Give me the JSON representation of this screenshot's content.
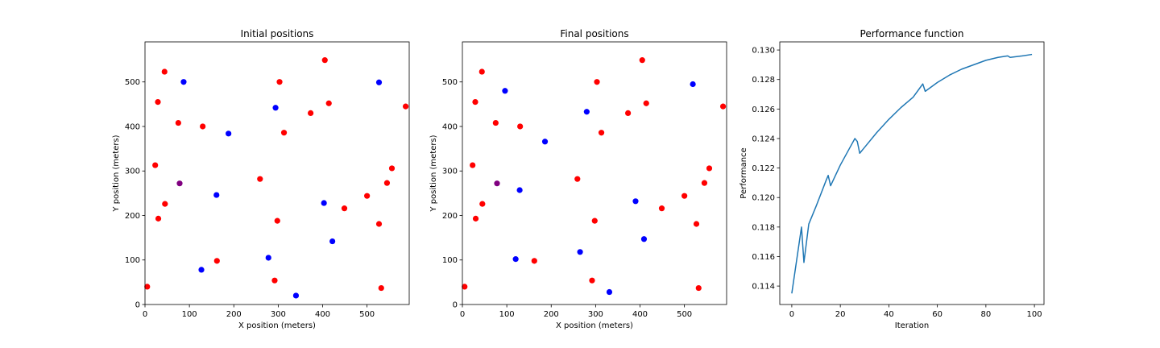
{
  "chart_data": [
    {
      "type": "scatter",
      "title": "Initial positions",
      "xlabel": "X position (meters)",
      "ylabel": "Y position (meters)",
      "xlim": [
        0,
        595
      ],
      "ylim": [
        0,
        590
      ],
      "xticks": [
        "0",
        "100",
        "200",
        "300",
        "400",
        "500"
      ],
      "xtick_values": [
        0,
        100,
        200,
        300,
        400,
        500
      ],
      "yticks": [
        "0",
        "100",
        "200",
        "300",
        "400",
        "500"
      ],
      "ytick_values": [
        0,
        100,
        200,
        300,
        400,
        500
      ],
      "grid": false,
      "series": [
        {
          "color": "#ff0000",
          "points": [
            [
              5,
              40
            ],
            [
              23,
              313
            ],
            [
              30,
              193
            ],
            [
              29,
              455
            ],
            [
              44,
              523
            ],
            [
              45,
              226
            ],
            [
              75,
              408
            ],
            [
              130,
              400
            ],
            [
              162,
              98
            ],
            [
              259,
              282
            ],
            [
              292,
              54
            ],
            [
              298,
              188
            ],
            [
              303,
              500
            ],
            [
              313,
              386
            ],
            [
              373,
              430
            ],
            [
              405,
              549
            ],
            [
              414,
              452
            ],
            [
              449,
              216
            ],
            [
              500,
              244
            ],
            [
              527,
              181
            ],
            [
              532,
              37
            ],
            [
              545,
              273
            ],
            [
              556,
              306
            ],
            [
              587,
              445
            ]
          ]
        },
        {
          "color": "#0000ff",
          "points": [
            [
              87,
              500
            ],
            [
              127,
              78
            ],
            [
              161,
              246
            ],
            [
              188,
              384
            ],
            [
              278,
              105
            ],
            [
              294,
              442
            ],
            [
              340,
              20
            ],
            [
              403,
              228
            ],
            [
              422,
              142
            ],
            [
              527,
              499
            ]
          ]
        },
        {
          "color": "#800080",
          "points": [
            [
              78,
              272
            ]
          ]
        }
      ]
    },
    {
      "type": "scatter",
      "title": "Final positions",
      "xlabel": "X position (meters)",
      "ylabel": "Y position (meters)",
      "xlim": [
        0,
        595
      ],
      "ylim": [
        0,
        590
      ],
      "xticks": [
        "0",
        "100",
        "200",
        "300",
        "400",
        "500"
      ],
      "xtick_values": [
        0,
        100,
        200,
        300,
        400,
        500
      ],
      "yticks": [
        "0",
        "100",
        "200",
        "300",
        "400",
        "500"
      ],
      "ytick_values": [
        0,
        100,
        200,
        300,
        400,
        500
      ],
      "grid": false,
      "series": [
        {
          "color": "#ff0000",
          "points": [
            [
              5,
              40
            ],
            [
              23,
              313
            ],
            [
              30,
              193
            ],
            [
              29,
              455
            ],
            [
              44,
              523
            ],
            [
              45,
              226
            ],
            [
              75,
              408
            ],
            [
              130,
              400
            ],
            [
              162,
              98
            ],
            [
              259,
              282
            ],
            [
              292,
              54
            ],
            [
              298,
              188
            ],
            [
              303,
              500
            ],
            [
              313,
              386
            ],
            [
              373,
              430
            ],
            [
              405,
              549
            ],
            [
              414,
              452
            ],
            [
              449,
              216
            ],
            [
              500,
              244
            ],
            [
              527,
              181
            ],
            [
              532,
              37
            ],
            [
              545,
              273
            ],
            [
              556,
              306
            ],
            [
              587,
              445
            ]
          ]
        },
        {
          "color": "#0000ff",
          "points": [
            [
              96,
              480
            ],
            [
              120,
              102
            ],
            [
              129,
              257
            ],
            [
              186,
              366
            ],
            [
              265,
              118
            ],
            [
              280,
              433
            ],
            [
              331,
              28
            ],
            [
              390,
              232
            ],
            [
              409,
              147
            ],
            [
              519,
              495
            ]
          ]
        },
        {
          "color": "#800080",
          "points": [
            [
              78,
              272
            ]
          ]
        }
      ]
    },
    {
      "type": "line",
      "title": "Performance function",
      "xlabel": "Iteration",
      "ylabel": "Performance",
      "xlim": [
        -4.95,
        103.95
      ],
      "ylim": [
        0.11275,
        0.13055
      ],
      "xticks": [
        "0",
        "20",
        "40",
        "60",
        "80",
        "100"
      ],
      "xtick_values": [
        0,
        20,
        40,
        60,
        80,
        100
      ],
      "yticks": [
        "0.114",
        "0.116",
        "0.118",
        "0.120",
        "0.122",
        "0.124",
        "0.126",
        "0.128",
        "0.130"
      ],
      "ytick_values": [
        0.114,
        0.116,
        0.118,
        0.12,
        0.122,
        0.124,
        0.126,
        0.128,
        0.13
      ],
      "grid": false,
      "series": [
        {
          "color": "#1f77b4",
          "points": [
            [
              0,
              0.1135
            ],
            [
              4,
              0.118
            ],
            [
              5,
              0.1156
            ],
            [
              7,
              0.1182
            ],
            [
              10,
              0.1194
            ],
            [
              14,
              0.1211
            ],
            [
              15,
              0.1215
            ],
            [
              16,
              0.1208
            ],
            [
              20,
              0.1222
            ],
            [
              24,
              0.1234
            ],
            [
              26,
              0.124
            ],
            [
              27,
              0.1238
            ],
            [
              28,
              0.123
            ],
            [
              30,
              0.1234
            ],
            [
              35,
              0.1244
            ],
            [
              40,
              0.1253
            ],
            [
              45,
              0.1261
            ],
            [
              50,
              0.1268
            ],
            [
              54,
              0.1277
            ],
            [
              55,
              0.1272
            ],
            [
              60,
              0.1278
            ],
            [
              65,
              0.1283
            ],
            [
              70,
              0.1287
            ],
            [
              75,
              0.129
            ],
            [
              80,
              0.1293
            ],
            [
              85,
              0.1295
            ],
            [
              89,
              0.1296
            ],
            [
              90,
              0.1295
            ],
            [
              95,
              0.1296
            ],
            [
              99,
              0.1297
            ]
          ]
        }
      ]
    }
  ]
}
